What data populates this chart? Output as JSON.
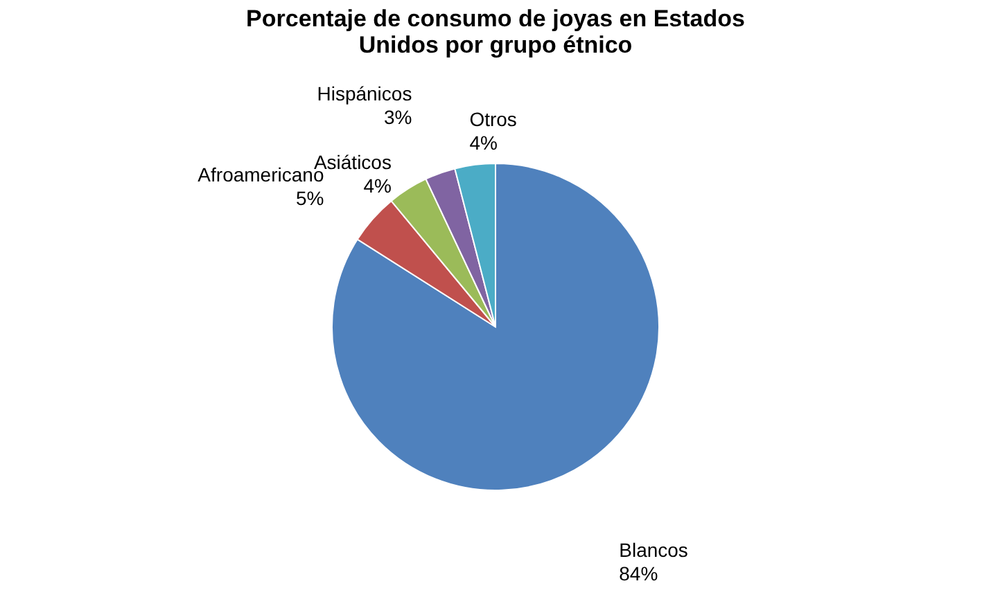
{
  "chart_data": {
    "type": "pie",
    "title": [
      "Porcentaje de consumo de joyas en Estados",
      "Unidos por grupo étnico"
    ],
    "categories": [
      "Blancos",
      "Afroamericano",
      "Asiáticos",
      "Hispánicos",
      "Otros"
    ],
    "values": [
      84,
      5,
      4,
      3,
      4
    ],
    "value_labels": [
      "84%",
      "5%",
      "4%",
      "3%",
      "4%"
    ],
    "colors": [
      "#4f81bd",
      "#c0504d",
      "#9bbb59",
      "#8064a2",
      "#4bacc6"
    ],
    "legend": false
  }
}
